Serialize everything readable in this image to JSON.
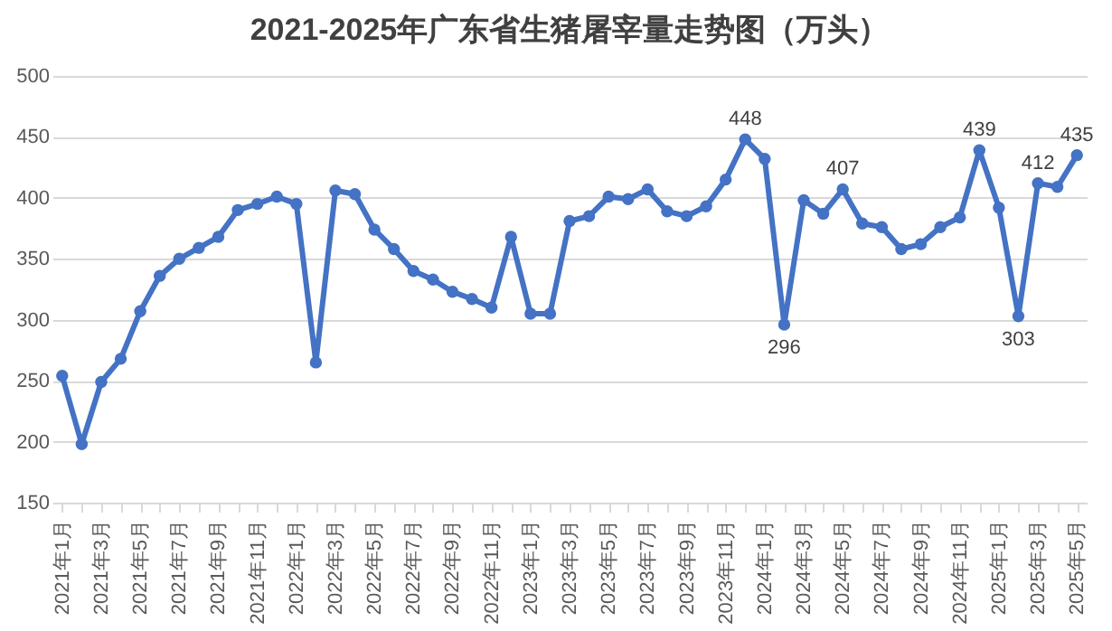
{
  "chart_data": {
    "type": "line",
    "title": "2021-2025年广东省生猪屠宰量走势图（万头）",
    "categories": [
      "2021年1月",
      null,
      "2021年3月",
      null,
      "2021年5月",
      null,
      "2021年7月",
      null,
      "2021年9月",
      null,
      "2021年11月",
      null,
      "2022年1月",
      null,
      "2022年3月",
      null,
      "2022年5月",
      null,
      "2022年7月",
      null,
      "2022年9月",
      null,
      "2022年11月",
      null,
      "2023年1月",
      null,
      "2023年3月",
      null,
      "2023年5月",
      null,
      "2023年7月",
      null,
      "2023年9月",
      null,
      "2023年11月",
      null,
      "2024年1月",
      null,
      "2024年3月",
      null,
      "2024年5月",
      null,
      "2024年7月",
      null,
      "2024年9月",
      null,
      "2024年11月",
      null,
      "2025年1月",
      null,
      "2025年3月",
      null,
      "2025年5月"
    ],
    "series": [
      {
        "color": "#4472c4",
        "values": [
          254,
          198,
          249,
          268,
          307,
          336,
          350,
          359,
          368,
          390,
          395,
          401,
          395,
          265,
          406,
          403,
          374,
          358,
          340,
          333,
          323,
          317,
          310,
          368,
          305,
          305,
          381,
          385,
          401,
          399,
          407,
          389,
          385,
          393,
          415,
          448,
          432,
          296,
          398,
          387,
          407,
          379,
          376,
          358,
          362,
          376,
          384,
          439,
          392,
          303,
          412,
          409,
          435
        ],
        "value_labels": [
          null,
          null,
          null,
          null,
          null,
          null,
          null,
          null,
          null,
          null,
          null,
          null,
          null,
          null,
          null,
          null,
          null,
          null,
          null,
          null,
          null,
          null,
          null,
          null,
          null,
          null,
          null,
          null,
          null,
          null,
          null,
          null,
          null,
          null,
          null,
          "448",
          null,
          "296",
          null,
          null,
          "407",
          null,
          null,
          null,
          null,
          null,
          null,
          "439",
          null,
          "303",
          "412",
          null,
          "435"
        ]
      }
    ],
    "ylim": [
      150,
      500
    ],
    "yticks": [
      150,
      200,
      250,
      300,
      350,
      400,
      450,
      500
    ],
    "grid": "y",
    "marker": "circle",
    "line_style": "solid"
  }
}
